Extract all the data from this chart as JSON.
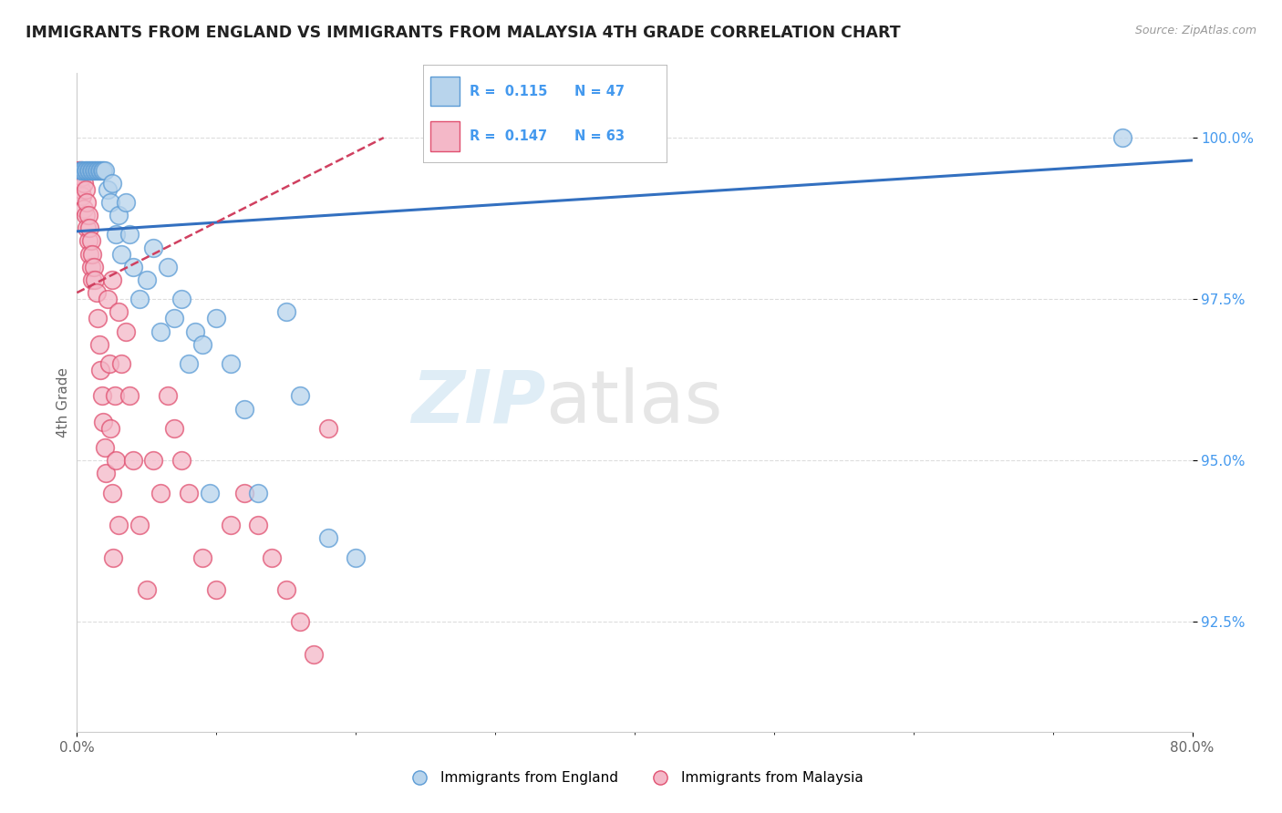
{
  "title": "IMMIGRANTS FROM ENGLAND VS IMMIGRANTS FROM MALAYSIA 4TH GRADE CORRELATION CHART",
  "source": "Source: ZipAtlas.com",
  "ylabel": "4th Grade",
  "legend_england": "Immigrants from England",
  "legend_malaysia": "Immigrants from Malaysia",
  "R_england": "0.115",
  "N_england": "47",
  "R_malaysia": "0.147",
  "N_malaysia": "63",
  "color_england_fill": "#b8d4ec",
  "color_england_edge": "#5b9bd5",
  "color_malaysia_fill": "#f4b8c8",
  "color_malaysia_edge": "#e05070",
  "color_england_trendline": "#3370c0",
  "color_malaysia_trendline": "#d04060",
  "england_x": [
    0.003,
    0.004,
    0.005,
    0.006,
    0.007,
    0.008,
    0.009,
    0.01,
    0.011,
    0.012,
    0.013,
    0.014,
    0.015,
    0.016,
    0.017,
    0.018,
    0.019,
    0.02,
    0.022,
    0.024,
    0.025,
    0.028,
    0.03,
    0.032,
    0.035,
    0.038,
    0.04,
    0.045,
    0.05,
    0.055,
    0.06,
    0.065,
    0.07,
    0.075,
    0.08,
    0.085,
    0.09,
    0.095,
    0.1,
    0.11,
    0.12,
    0.13,
    0.15,
    0.16,
    0.18,
    0.2,
    0.75
  ],
  "england_y": [
    99.5,
    99.5,
    99.5,
    99.5,
    99.5,
    99.5,
    99.5,
    99.5,
    99.5,
    99.5,
    99.5,
    99.5,
    99.5,
    99.5,
    99.5,
    99.5,
    99.5,
    99.5,
    99.2,
    99.0,
    99.3,
    98.5,
    98.8,
    98.2,
    99.0,
    98.5,
    98.0,
    97.5,
    97.8,
    98.3,
    97.0,
    98.0,
    97.2,
    97.5,
    96.5,
    97.0,
    96.8,
    94.5,
    97.2,
    96.5,
    95.8,
    94.5,
    97.3,
    96.0,
    93.8,
    93.5,
    100.0
  ],
  "malaysia_x": [
    0.001,
    0.002,
    0.002,
    0.003,
    0.003,
    0.004,
    0.004,
    0.005,
    0.005,
    0.006,
    0.006,
    0.007,
    0.007,
    0.008,
    0.008,
    0.009,
    0.009,
    0.01,
    0.01,
    0.011,
    0.011,
    0.012,
    0.013,
    0.014,
    0.015,
    0.016,
    0.017,
    0.018,
    0.019,
    0.02,
    0.021,
    0.022,
    0.023,
    0.024,
    0.025,
    0.026,
    0.027,
    0.028,
    0.03,
    0.032,
    0.035,
    0.038,
    0.04,
    0.045,
    0.05,
    0.055,
    0.06,
    0.065,
    0.07,
    0.075,
    0.08,
    0.09,
    0.1,
    0.11,
    0.12,
    0.13,
    0.14,
    0.15,
    0.16,
    0.17,
    0.18,
    0.03,
    0.025
  ],
  "malaysia_y": [
    99.5,
    99.5,
    99.3,
    99.5,
    99.2,
    99.4,
    99.1,
    99.3,
    98.9,
    99.2,
    98.8,
    99.0,
    98.6,
    98.8,
    98.4,
    98.6,
    98.2,
    98.4,
    98.0,
    98.2,
    97.8,
    98.0,
    97.8,
    97.6,
    97.2,
    96.8,
    96.4,
    96.0,
    95.6,
    95.2,
    94.8,
    97.5,
    96.5,
    95.5,
    94.5,
    93.5,
    96.0,
    95.0,
    94.0,
    96.5,
    97.0,
    96.0,
    95.0,
    94.0,
    93.0,
    95.0,
    94.5,
    96.0,
    95.5,
    95.0,
    94.5,
    93.5,
    93.0,
    94.0,
    94.5,
    94.0,
    93.5,
    93.0,
    92.5,
    92.0,
    95.5,
    97.3,
    97.8
  ],
  "xlim": [
    0.0,
    0.8
  ],
  "ylim": [
    90.8,
    101.0
  ],
  "eng_trendline_x": [
    0.0,
    0.8
  ],
  "eng_trendline_y": [
    98.55,
    99.65
  ],
  "mal_trendline_x": [
    0.0,
    0.22
  ],
  "mal_trendline_y": [
    97.6,
    100.0
  ],
  "watermark_zip": "ZIP",
  "watermark_atlas": "atlas",
  "background_color": "#ffffff",
  "grid_color": "#dddddd",
  "y_ticks": [
    92.5,
    95.0,
    97.5,
    100.0
  ],
  "y_tick_labels": [
    "92.5%",
    "95.0%",
    "97.5%",
    "100.0%"
  ],
  "tick_color": "#4499ee"
}
